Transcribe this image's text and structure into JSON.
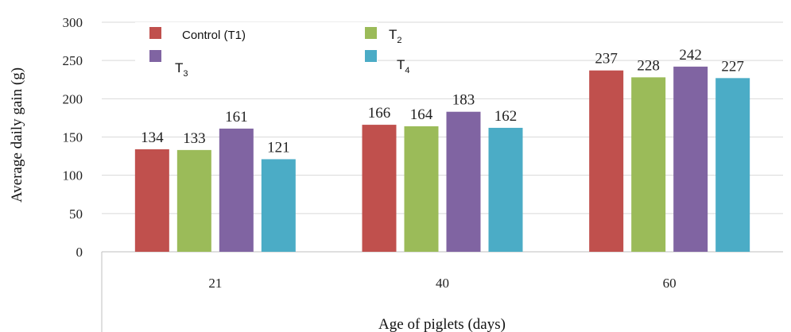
{
  "chart_data": {
    "type": "bar",
    "xlabel": "Age of piglets (days)",
    "ylabel": "Average daily gain (g)",
    "ylim": [
      0,
      300
    ],
    "yticks": [
      0,
      50,
      100,
      150,
      200,
      250,
      300
    ],
    "categories": [
      "21",
      "40",
      "60"
    ],
    "grid": true,
    "legend_position": "top-left",
    "series": [
      {
        "name": "Control (T1)",
        "color": "#c0504d",
        "values": [
          134,
          166,
          237
        ]
      },
      {
        "name": "T2",
        "legend_base": "T",
        "legend_sub": "2",
        "color": "#9bbb59",
        "values": [
          133,
          164,
          228
        ]
      },
      {
        "name": "T3",
        "legend_base": "T",
        "legend_sub": "3",
        "color": "#8064a2",
        "values": [
          161,
          183,
          242
        ]
      },
      {
        "name": "T4",
        "legend_base": "T",
        "legend_sub": "4",
        "color": "#4bacc6",
        "values": [
          121,
          162,
          227
        ]
      }
    ]
  }
}
